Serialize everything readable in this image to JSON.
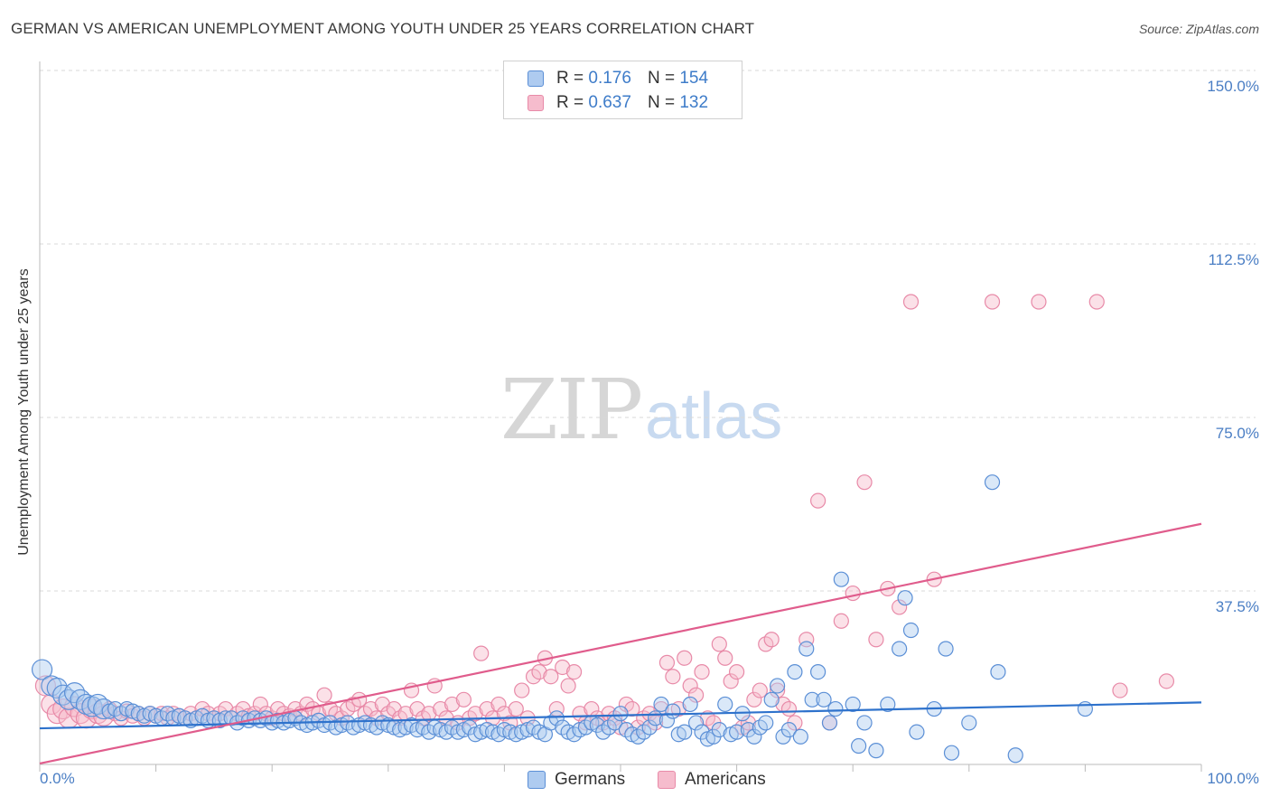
{
  "header": {
    "title": "GERMAN VS AMERICAN UNEMPLOYMENT AMONG YOUTH UNDER 25 YEARS CORRELATION CHART",
    "source": "Source: ZipAtlas.com"
  },
  "watermark": {
    "zip": "ZIP",
    "atlas": "atlas"
  },
  "legend": {
    "germans": {
      "r_label": "R =",
      "r_value": "0.176",
      "n_label": "N =",
      "n_value": "154"
    },
    "americans": {
      "r_label": "R =",
      "r_value": "0.637",
      "n_label": "N =",
      "n_value": "132"
    }
  },
  "bottom_legend": {
    "germans": "Germans",
    "americans": "Americans"
  },
  "colors": {
    "germans_fill": "#aecbf0",
    "germans_stroke": "#5b8fd6",
    "germans_line": "#2e72cc",
    "americans_fill": "#f6bccd",
    "americans_stroke": "#e88aa8",
    "americans_line": "#e05c8c",
    "grid": "#d8d8d8",
    "tick_label": "#4a7ec4"
  },
  "chart_data": {
    "type": "scatter",
    "title": "GERMAN VS AMERICAN UNEMPLOYMENT AMONG YOUTH UNDER 25 YEARS CORRELATION CHART",
    "xlabel": "",
    "ylabel": "Unemployment Among Youth under 25 years",
    "xlim": [
      0,
      100
    ],
    "ylim": [
      0,
      150
    ],
    "y_ticks": [
      {
        "value": 37.5,
        "label": "37.5%"
      },
      {
        "value": 75.0,
        "label": "75.0%"
      },
      {
        "value": 112.5,
        "label": "112.5%"
      },
      {
        "value": 150.0,
        "label": "150.0%"
      }
    ],
    "x_ticks": [
      {
        "value": 0,
        "label": "0.0%"
      },
      {
        "value": 100,
        "label": "100.0%"
      }
    ],
    "grid": true,
    "legend_position": "top-center",
    "series": [
      {
        "name": "Germans",
        "r": 0.176,
        "n": 154,
        "trend": {
          "x": [
            0,
            100
          ],
          "y": [
            7.8,
            13.4
          ]
        },
        "points": [
          [
            0.2,
            20.5
          ],
          [
            1,
            17
          ],
          [
            1.5,
            16.5
          ],
          [
            2,
            15
          ],
          [
            2.5,
            14
          ],
          [
            3,
            15.5
          ],
          [
            3.5,
            14
          ],
          [
            4,
            13
          ],
          [
            4.5,
            12.5
          ],
          [
            5,
            13
          ],
          [
            5.5,
            12
          ],
          [
            6,
            11.5
          ],
          [
            6.5,
            12
          ],
          [
            7,
            11
          ],
          [
            7.5,
            12
          ],
          [
            8,
            11.5
          ],
          [
            8.5,
            11
          ],
          [
            9,
            10.5
          ],
          [
            9.5,
            11
          ],
          [
            10,
            10.5
          ],
          [
            10.5,
            10
          ],
          [
            11,
            11
          ],
          [
            11.5,
            10
          ],
          [
            12,
            10.5
          ],
          [
            12.5,
            10
          ],
          [
            13,
            9.5
          ],
          [
            13.5,
            10
          ],
          [
            14,
            10.5
          ],
          [
            14.5,
            9.5
          ],
          [
            15,
            10
          ],
          [
            15.5,
            9.5
          ],
          [
            16,
            10
          ],
          [
            16.5,
            10
          ],
          [
            17,
            9
          ],
          [
            17.5,
            10
          ],
          [
            18,
            9.5
          ],
          [
            18.5,
            10
          ],
          [
            19,
            9.5
          ],
          [
            19.5,
            10
          ],
          [
            20,
            9
          ],
          [
            20.5,
            9.5
          ],
          [
            21,
            9
          ],
          [
            21.5,
            9.5
          ],
          [
            22,
            10
          ],
          [
            22.5,
            9
          ],
          [
            23,
            8.5
          ],
          [
            23.5,
            9
          ],
          [
            24,
            9.5
          ],
          [
            24.5,
            8.5
          ],
          [
            25,
            9
          ],
          [
            25.5,
            8
          ],
          [
            26,
            8.5
          ],
          [
            26.5,
            9
          ],
          [
            27,
            8
          ],
          [
            27.5,
            8.5
          ],
          [
            28,
            9
          ],
          [
            28.5,
            8.5
          ],
          [
            29,
            8
          ],
          [
            29.5,
            9
          ],
          [
            30,
            8.5
          ],
          [
            30.5,
            8
          ],
          [
            31,
            7.5
          ],
          [
            31.5,
            8
          ],
          [
            32,
            8.5
          ],
          [
            32.5,
            7.5
          ],
          [
            33,
            8
          ],
          [
            33.5,
            7
          ],
          [
            34,
            8
          ],
          [
            34.5,
            7.5
          ],
          [
            35,
            7
          ],
          [
            35.5,
            8
          ],
          [
            36,
            7
          ],
          [
            36.5,
            7.5
          ],
          [
            37,
            8
          ],
          [
            37.5,
            6.5
          ],
          [
            38,
            7
          ],
          [
            38.5,
            7.5
          ],
          [
            39,
            7
          ],
          [
            39.5,
            6.5
          ],
          [
            40,
            7.5
          ],
          [
            40.5,
            7
          ],
          [
            41,
            6.5
          ],
          [
            41.5,
            7
          ],
          [
            42,
            7.5
          ],
          [
            42.5,
            8
          ],
          [
            43,
            7
          ],
          [
            43.5,
            6.5
          ],
          [
            44,
            9
          ],
          [
            44.5,
            10
          ],
          [
            45,
            8
          ],
          [
            45.5,
            7
          ],
          [
            46,
            6.5
          ],
          [
            46.5,
            7.5
          ],
          [
            47,
            8
          ],
          [
            47.5,
            9
          ],
          [
            48,
            8.5
          ],
          [
            48.5,
            7
          ],
          [
            49,
            8
          ],
          [
            49.5,
            9
          ],
          [
            50,
            11
          ],
          [
            50.5,
            7.5
          ],
          [
            51,
            6.5
          ],
          [
            51.5,
            6
          ],
          [
            52,
            7
          ],
          [
            52.5,
            8
          ],
          [
            53,
            10
          ],
          [
            53.5,
            13
          ],
          [
            54,
            9.5
          ],
          [
            54.5,
            11.5
          ],
          [
            55,
            6.5
          ],
          [
            55.5,
            7
          ],
          [
            56,
            13
          ],
          [
            56.5,
            9
          ],
          [
            57,
            7
          ],
          [
            57.5,
            5.5
          ],
          [
            58,
            6
          ],
          [
            58.5,
            7.5
          ],
          [
            59,
            13
          ],
          [
            59.5,
            6.5
          ],
          [
            60,
            7
          ],
          [
            60.5,
            11
          ],
          [
            61,
            7.5
          ],
          [
            61.5,
            6
          ],
          [
            62,
            8
          ],
          [
            62.5,
            9
          ],
          [
            63,
            14
          ],
          [
            63.5,
            17
          ],
          [
            64,
            6
          ],
          [
            64.5,
            7.5
          ],
          [
            65,
            20
          ],
          [
            65.5,
            6
          ],
          [
            66,
            25
          ],
          [
            66.5,
            14
          ],
          [
            67,
            20
          ],
          [
            67.5,
            14
          ],
          [
            68,
            9
          ],
          [
            68.5,
            12
          ],
          [
            69,
            40
          ],
          [
            70,
            13
          ],
          [
            70.5,
            4
          ],
          [
            71,
            9
          ],
          [
            72,
            3
          ],
          [
            73,
            13
          ],
          [
            74,
            25
          ],
          [
            74.5,
            36
          ],
          [
            75,
            29
          ],
          [
            75.5,
            7
          ],
          [
            77,
            12
          ],
          [
            78,
            25
          ],
          [
            78.5,
            2.5
          ],
          [
            80,
            9
          ],
          [
            82,
            61
          ],
          [
            82.5,
            20
          ],
          [
            84,
            2
          ],
          [
            90,
            12
          ]
        ]
      },
      {
        "name": "Americans",
        "r": 0.637,
        "n": 132,
        "trend": {
          "x": [
            0,
            100
          ],
          "y": [
            0.2,
            52
          ]
        },
        "points": [
          [
            0.5,
            17
          ],
          [
            1,
            13
          ],
          [
            1.5,
            11
          ],
          [
            2,
            12
          ],
          [
            2.5,
            10
          ],
          [
            3,
            12.5
          ],
          [
            3.5,
            11
          ],
          [
            4,
            10
          ],
          [
            4.5,
            12
          ],
          [
            5,
            11
          ],
          [
            5.5,
            10.5
          ],
          [
            6,
            12
          ],
          [
            6.5,
            11
          ],
          [
            7,
            10
          ],
          [
            7.5,
            11.5
          ],
          [
            8,
            10.5
          ],
          [
            8.5,
            11
          ],
          [
            9,
            10
          ],
          [
            9.5,
            11
          ],
          [
            10,
            10.5
          ],
          [
            10.5,
            11
          ],
          [
            11,
            10
          ],
          [
            11.5,
            11
          ],
          [
            12,
            10.5
          ],
          [
            12.5,
            10
          ],
          [
            13,
            11
          ],
          [
            13.5,
            10
          ],
          [
            14,
            12
          ],
          [
            14.5,
            11
          ],
          [
            15,
            10
          ],
          [
            15.5,
            11
          ],
          [
            16,
            12
          ],
          [
            16.5,
            10
          ],
          [
            17,
            11
          ],
          [
            17.5,
            12
          ],
          [
            18,
            10.5
          ],
          [
            18.5,
            11
          ],
          [
            19,
            13
          ],
          [
            19.5,
            11
          ],
          [
            20,
            10
          ],
          [
            20.5,
            12
          ],
          [
            21,
            11
          ],
          [
            21.5,
            10.5
          ],
          [
            22,
            12
          ],
          [
            22.5,
            11
          ],
          [
            23,
            13
          ],
          [
            23.5,
            12
          ],
          [
            24,
            11
          ],
          [
            24.5,
            15
          ],
          [
            25,
            12
          ],
          [
            25.5,
            11
          ],
          [
            26,
            10
          ],
          [
            26.5,
            12
          ],
          [
            27,
            13
          ],
          [
            27.5,
            14
          ],
          [
            28,
            11
          ],
          [
            28.5,
            12
          ],
          [
            29,
            10
          ],
          [
            29.5,
            13
          ],
          [
            30,
            11
          ],
          [
            30.5,
            12
          ],
          [
            31,
            10
          ],
          [
            31.5,
            11
          ],
          [
            32,
            16
          ],
          [
            32.5,
            12
          ],
          [
            33,
            10
          ],
          [
            33.5,
            11
          ],
          [
            34,
            17
          ],
          [
            34.5,
            12
          ],
          [
            35,
            10
          ],
          [
            35.5,
            13
          ],
          [
            36,
            9
          ],
          [
            36.5,
            14
          ],
          [
            37,
            10
          ],
          [
            37.5,
            11
          ],
          [
            38,
            24
          ],
          [
            38.5,
            12
          ],
          [
            39,
            10
          ],
          [
            39.5,
            13
          ],
          [
            40,
            11
          ],
          [
            40.5,
            9
          ],
          [
            41,
            12
          ],
          [
            41.5,
            16
          ],
          [
            42,
            10
          ],
          [
            42.5,
            19
          ],
          [
            43,
            20
          ],
          [
            43.5,
            23
          ],
          [
            44,
            19
          ],
          [
            44.5,
            12
          ],
          [
            45,
            21
          ],
          [
            45.5,
            17
          ],
          [
            46,
            20
          ],
          [
            46.5,
            11
          ],
          [
            47,
            9
          ],
          [
            47.5,
            12
          ],
          [
            48,
            10
          ],
          [
            48.5,
            9
          ],
          [
            49,
            11
          ],
          [
            49.5,
            10
          ],
          [
            50,
            8
          ],
          [
            50.5,
            13
          ],
          [
            51,
            12
          ],
          [
            51.5,
            8
          ],
          [
            52,
            10
          ],
          [
            52.5,
            11
          ],
          [
            53,
            9
          ],
          [
            53.5,
            12
          ],
          [
            54,
            22
          ],
          [
            54.5,
            19
          ],
          [
            55,
            12
          ],
          [
            55.5,
            23
          ],
          [
            56,
            17
          ],
          [
            56.5,
            15
          ],
          [
            57,
            20
          ],
          [
            57.5,
            10
          ],
          [
            58,
            9
          ],
          [
            58.5,
            26
          ],
          [
            59,
            23
          ],
          [
            59.5,
            18
          ],
          [
            60,
            20
          ],
          [
            60.5,
            8
          ],
          [
            61,
            9
          ],
          [
            61.5,
            14
          ],
          [
            62,
            16
          ],
          [
            62.5,
            26
          ],
          [
            63,
            27
          ],
          [
            63.5,
            16
          ],
          [
            64,
            13
          ],
          [
            64.5,
            12
          ],
          [
            65,
            9
          ],
          [
            66,
            27
          ],
          [
            67,
            57
          ],
          [
            68,
            9
          ],
          [
            69,
            31
          ],
          [
            70,
            37
          ],
          [
            71,
            61
          ],
          [
            72,
            27
          ],
          [
            73,
            38
          ],
          [
            74,
            34
          ],
          [
            75,
            100
          ],
          [
            77,
            40
          ],
          [
            82,
            100
          ],
          [
            86,
            100
          ],
          [
            91,
            100
          ],
          [
            93,
            16
          ],
          [
            97,
            18
          ]
        ]
      }
    ]
  }
}
